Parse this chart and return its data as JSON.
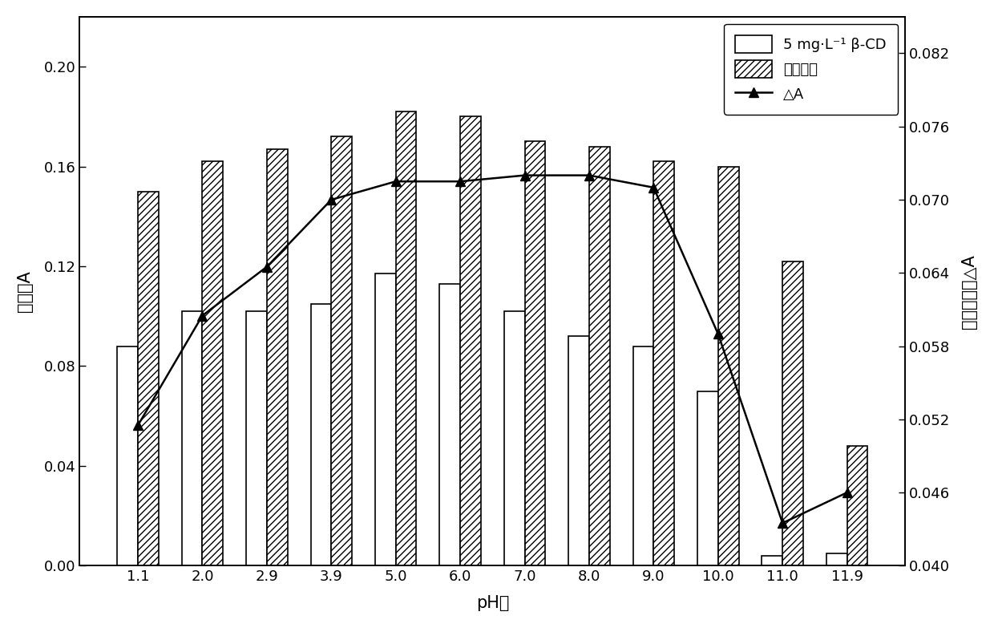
{
  "ph_values": [
    "1.1",
    "2.0",
    "2.9",
    "3.9",
    "5.0",
    "6.0",
    "7.0",
    "8.0",
    "9.0",
    "10.0",
    "11.0",
    "11.9"
  ],
  "bar_cd": [
    0.088,
    0.102,
    0.102,
    0.105,
    0.117,
    0.113,
    0.102,
    0.092,
    0.088,
    0.07,
    0.004,
    0.005
  ],
  "bar_blank": [
    0.15,
    0.162,
    0.167,
    0.172,
    0.182,
    0.18,
    0.17,
    0.168,
    0.162,
    0.16,
    0.122,
    0.048
  ],
  "delta_a": [
    0.0515,
    0.0605,
    0.0645,
    0.07,
    0.0715,
    0.0715,
    0.072,
    0.072,
    0.071,
    0.059,
    0.0435,
    0.046
  ],
  "left_ylim": [
    0,
    0.22
  ],
  "left_yticks": [
    0,
    0.04,
    0.08,
    0.12,
    0.16,
    0.2
  ],
  "right_ylim": [
    0.04,
    0.085
  ],
  "right_yticks": [
    0.04,
    0.046,
    0.052,
    0.058,
    0.064,
    0.07,
    0.076,
    0.082
  ],
  "xlabel": "pH值",
  "ylabel_left": "吸光值A",
  "ylabel_right": "吸光值差值△A",
  "legend_label_cd": "5 mg·L⁻¹ β-CD",
  "legend_label_blank": "空白溶液",
  "legend_label_line": "△A",
  "bar_width": 0.32,
  "line_color": "#000000",
  "line_marker": "^",
  "figsize": [
    12.4,
    7.83
  ],
  "dpi": 100
}
